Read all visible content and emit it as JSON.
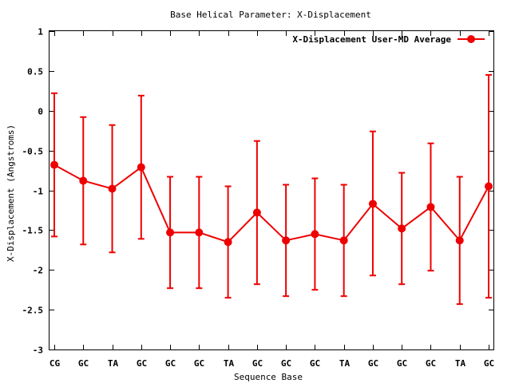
{
  "chart_data": {
    "type": "line",
    "title": "Base  Helical Parameter: X-Displacement",
    "xlabel": "Sequence Base",
    "ylabel": "X-Displacement (Angstroms)",
    "categories": [
      "CG",
      "GC",
      "TA",
      "GC",
      "GC",
      "GC",
      "TA",
      "GC",
      "GC",
      "GC",
      "TA",
      "GC",
      "GC",
      "GC",
      "TA",
      "GC"
    ],
    "ylim": [
      -3,
      1
    ],
    "yticks": [
      -3,
      -2.5,
      -2,
      -1.5,
      -1,
      -0.5,
      0,
      0.5,
      1
    ],
    "ytick_labels": [
      "-3",
      "-2.5",
      "-2",
      "-1.5",
      "-1",
      "-0.5",
      "0",
      "0.5",
      "1"
    ],
    "grid": false,
    "legend_position": "top-right",
    "series": [
      {
        "name": "X-Displacement User-MD Average",
        "color": "#ee0000",
        "marker": "circle",
        "values": [
          -0.68,
          -0.88,
          -0.98,
          -0.71,
          -1.53,
          -1.53,
          -1.65,
          -1.28,
          -1.63,
          -1.55,
          -1.63,
          -1.17,
          -1.48,
          -1.21,
          -1.63,
          -0.95
        ],
        "error_low": [
          -1.58,
          -1.68,
          -1.78,
          -1.61,
          -2.23,
          -2.23,
          -2.35,
          -2.18,
          -2.33,
          -2.25,
          -2.33,
          -2.07,
          -2.18,
          -2.01,
          -2.43,
          -2.35
        ],
        "error_high": [
          0.22,
          -0.08,
          -0.18,
          0.19,
          -0.83,
          -0.83,
          -0.95,
          -0.38,
          -0.93,
          -0.85,
          -0.93,
          -0.26,
          -0.78,
          -0.41,
          -0.83,
          0.45
        ]
      }
    ]
  }
}
